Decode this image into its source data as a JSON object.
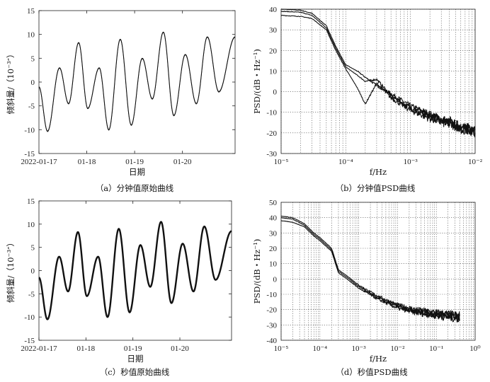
{
  "figure": {
    "panels": [
      {
        "id": "a",
        "caption": "（a）分钟值原始曲线",
        "chart_data": {
          "type": "line",
          "xlabel": "日期",
          "ylabel": "倾斜量/（10⁻³″）",
          "x_tick_labels": [
            "2022-01-17",
            "01-18",
            "01-19",
            "01-20"
          ],
          "x_tick_values": [
            0,
            1,
            2,
            3
          ],
          "xlim": [
            0,
            4.1
          ],
          "ylim": [
            -15,
            15
          ],
          "y_ticks": [
            -15,
            -10,
            -5,
            0,
            5,
            10,
            15
          ],
          "grid": false,
          "series": [
            {
              "x": [
                0,
                0.18,
                0.43,
                0.62,
                0.83,
                1.02,
                1.26,
                1.46,
                1.7,
                1.93,
                2.16,
                2.37,
                2.6,
                2.82,
                3.06,
                3.29,
                3.52,
                3.76,
                4.1
              ],
              "y": [
                -1.0,
                -10.3,
                3.0,
                -4.5,
                8.3,
                -5.5,
                3.0,
                -10.0,
                9.0,
                -9.0,
                5.0,
                -3.5,
                10.5,
                -7.0,
                5.8,
                -4.5,
                9.5,
                -2.0,
                9.5
              ],
              "thickness": "thin"
            }
          ]
        }
      },
      {
        "id": "b",
        "caption": "（b）分钟值PSD曲线",
        "chart_data": {
          "type": "line",
          "xlabel": "f/Hz",
          "ylabel": "PSD/(dB・Hz⁻¹)",
          "x_scale": "log",
          "x_tick_labels": [
            "10⁻⁵",
            "10⁻⁴",
            "10⁻³",
            "10⁻²"
          ],
          "x_tick_values": [
            1e-05,
            0.0001,
            0.001,
            0.01
          ],
          "xlim": [
            1e-05,
            0.01
          ],
          "ylim": [
            -30,
            40
          ],
          "y_ticks": [
            -30,
            -20,
            -10,
            0,
            10,
            20,
            30,
            40
          ],
          "grid": true,
          "series": [
            {
              "x": [
                1e-05,
                2e-05,
                3e-05,
                5e-05,
                7e-05,
                0.0001,
                0.00015,
                0.0002,
                0.0003,
                0.0005,
                0.001,
                0.002,
                0.004,
                0.006,
                0.01
              ],
              "y": [
                40,
                39.5,
                38,
                32,
                22,
                13,
                10,
                7,
                3,
                -1,
                -7,
                -11,
                -15,
                -17,
                -19
              ]
            },
            {
              "x": [
                1e-05,
                2e-05,
                3e-05,
                5e-05,
                7e-05,
                0.0001,
                0.00015,
                0.0002,
                0.0003,
                0.0005,
                0.001,
                0.002,
                0.004,
                0.006,
                0.01
              ],
              "y": [
                39,
                38.5,
                37,
                31,
                21,
                12,
                8,
                5,
                6,
                -2,
                -8,
                -12,
                -14,
                -18,
                -19
              ]
            },
            {
              "x": [
                1e-05,
                2e-05,
                3e-05,
                5e-05,
                7e-05,
                0.0001,
                0.00015,
                0.0002,
                0.0003,
                0.0005,
                0.001,
                0.002,
                0.004,
                0.006,
                0.01
              ],
              "y": [
                37,
                36.5,
                35.5,
                30,
                20,
                11,
                2,
                -6,
                4,
                -3,
                -9,
                -13,
                -16,
                -17,
                -20
              ]
            }
          ]
        }
      },
      {
        "id": "c",
        "caption": "（c）秒值原始曲线",
        "chart_data": {
          "type": "line",
          "xlabel": "日期",
          "ylabel": "倾斜量/（10⁻³″）",
          "x_tick_labels": [
            "2022-01-17",
            "01-18",
            "01-19",
            "01-20"
          ],
          "x_tick_values": [
            0,
            1,
            2,
            3
          ],
          "xlim": [
            0,
            4.1
          ],
          "ylim": [
            -15,
            15
          ],
          "y_ticks": [
            -15,
            -10,
            -5,
            0,
            5,
            10,
            15
          ],
          "grid": false,
          "series": [
            {
              "x": [
                0,
                0.18,
                0.43,
                0.62,
                0.83,
                1.02,
                1.26,
                1.46,
                1.7,
                1.93,
                2.16,
                2.37,
                2.6,
                2.82,
                3.06,
                3.29,
                3.52,
                3.76,
                4.1
              ],
              "y": [
                -1.5,
                -10.5,
                3.0,
                -4.5,
                8.3,
                -5.5,
                3.0,
                -10.0,
                9.0,
                -9.0,
                5.5,
                -3.5,
                10.5,
                -7.0,
                5.8,
                -4.5,
                9.5,
                -2.0,
                8.5
              ],
              "thickness": "thick"
            }
          ]
        }
      },
      {
        "id": "d",
        "caption": "（d）秒值PSD曲线",
        "chart_data": {
          "type": "line",
          "xlabel": "f/Hz",
          "ylabel": "PSD/(dB・Hz⁻¹)",
          "x_scale": "log",
          "x_tick_labels": [
            "10⁻⁵",
            "10⁻⁴",
            "10⁻³",
            "10⁻²",
            "10⁻¹",
            "10⁰"
          ],
          "x_tick_values": [
            1e-05,
            0.0001,
            0.001,
            0.01,
            0.1,
            1
          ],
          "xlim": [
            1e-05,
            1
          ],
          "ylim": [
            -40,
            50
          ],
          "y_ticks": [
            -40,
            -30,
            -20,
            -10,
            0,
            10,
            20,
            30,
            40,
            50
          ],
          "grid": true,
          "series": [
            {
              "x": [
                1e-05,
                2e-05,
                4e-05,
                7e-05,
                0.0001,
                0.0002,
                0.0003,
                0.0005,
                0.001,
                0.003,
                0.01,
                0.03,
                0.1,
                0.2,
                0.4
              ],
              "y": [
                41,
                40,
                36,
                30,
                27,
                20,
                6,
                2,
                -4,
                -11,
                -17,
                -20,
                -22,
                -23,
                -24
              ]
            },
            {
              "x": [
                1e-05,
                2e-05,
                4e-05,
                7e-05,
                0.0001,
                0.0002,
                0.0003,
                0.0005,
                0.001,
                0.003,
                0.01,
                0.03,
                0.1,
                0.2,
                0.4
              ],
              "y": [
                40,
                39,
                35,
                29,
                26,
                19,
                5,
                1,
                -5,
                -12,
                -18,
                -21,
                -23,
                -24,
                -25
              ]
            },
            {
              "x": [
                1e-05,
                2e-05,
                4e-05,
                7e-05,
                0.0001,
                0.0002,
                0.0003,
                0.0005,
                0.001,
                0.003,
                0.01,
                0.03,
                0.1,
                0.2,
                0.4
              ],
              "y": [
                38,
                37,
                34,
                28,
                25,
                18,
                4,
                0,
                -6,
                -13,
                -19,
                -22,
                -24,
                -25,
                -26
              ]
            }
          ]
        }
      }
    ]
  }
}
